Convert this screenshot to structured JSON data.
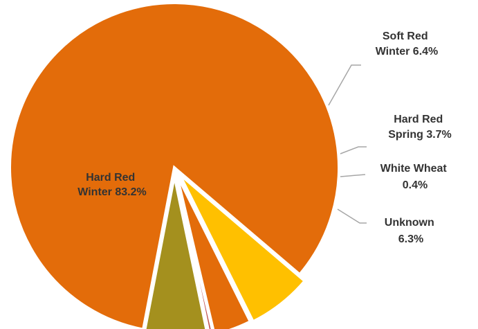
{
  "chart_data": {
    "type": "pie",
    "title": "",
    "slices": [
      {
        "name": "Hard Red Winter",
        "value": 83.2,
        "color": "#e36c0a",
        "label": [
          "Hard Red",
          "Winter 83.2%"
        ]
      },
      {
        "name": "Soft Red Winter",
        "value": 6.4,
        "color": "#ffc000",
        "label": [
          "Soft Red",
          "Winter 6.4%"
        ]
      },
      {
        "name": "Hard Red Spring",
        "value": 3.7,
        "color": "#e36c0a",
        "label": [
          "Hard Red",
          "Spring 3.7%"
        ]
      },
      {
        "name": "White Wheat",
        "value": 0.4,
        "color": "#c0504d",
        "label": [
          "White Wheat",
          "0.4%"
        ]
      },
      {
        "name": "Unknown",
        "value": 6.3,
        "color": "#a4901e",
        "label": [
          "Unknown",
          "6.3%"
        ]
      }
    ]
  }
}
